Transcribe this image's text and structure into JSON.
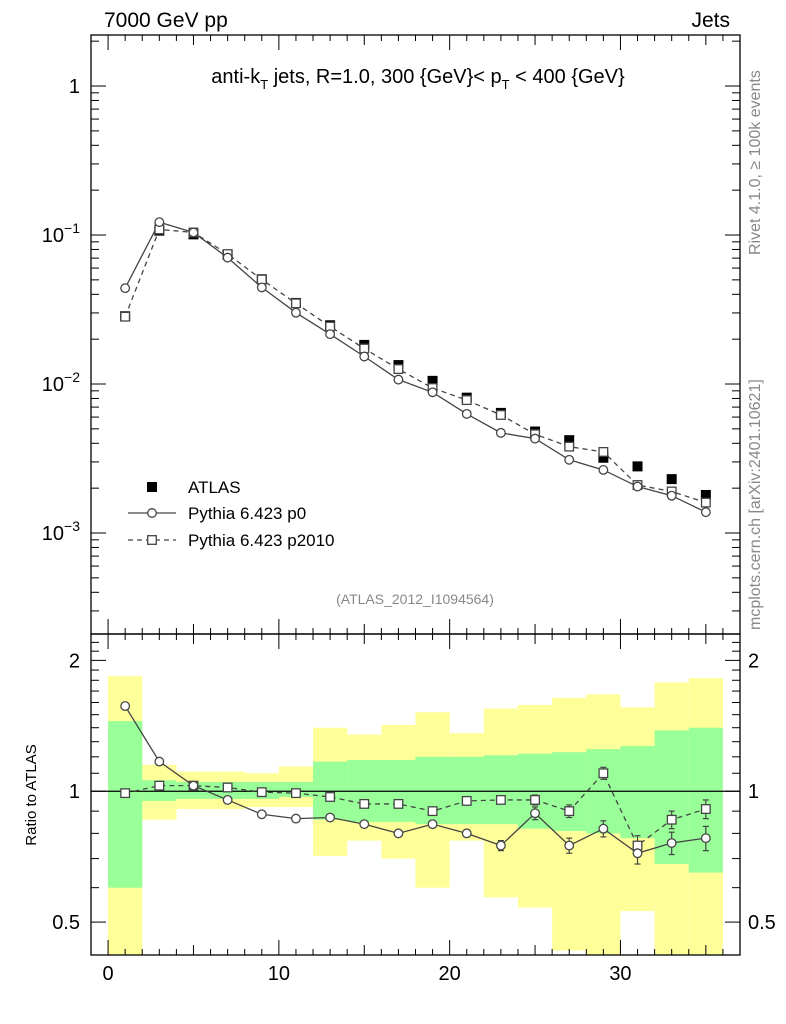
{
  "header": {
    "left": "7000 GeV pp",
    "right": "Jets"
  },
  "title_parts": {
    "pre": "anti-k",
    "sub1": "T",
    "mid": " jets, R=1.0, 300 {GeV}< p",
    "sub2": "T",
    "post": " < 400 {GeV}"
  },
  "side_labels": {
    "rivet": "Rivet 4.1.0, ≥ 100k events",
    "mcplots": "mcplots.cern.ch [arXiv:2401.10621]"
  },
  "analysis_id": "(ATLAS_2012_I1094564)",
  "ratio_ylabel": "Ratio to ATLAS",
  "legend": [
    {
      "label": "ATLAS",
      "style": "data"
    },
    {
      "label": "Pythia 6.423 p0",
      "style": "circle-solid"
    },
    {
      "label": "Pythia 6.423 p2010",
      "style": "square-dashed"
    }
  ],
  "colors": {
    "band_inner": "#99ff99",
    "band_outer": "#ffff99",
    "mc": "#444444",
    "data": "#000000"
  },
  "main_yticks": [
    {
      "base": "1",
      "exp": ""
    },
    {
      "base": "10",
      "exp": "−1"
    },
    {
      "base": "10",
      "exp": "−2"
    },
    {
      "base": "10",
      "exp": "−3"
    }
  ],
  "ratio_yticks": [
    "2",
    "1",
    "0.5"
  ],
  "xticks": [
    "0",
    "10",
    "20",
    "30"
  ],
  "chart_data": {
    "type": "scatter",
    "title": "anti-kT jets, R=1.0, 300 {GeV}< pT < 400 {GeV}",
    "xlim": [
      -1,
      37
    ],
    "main_ylim": [
      0.00021,
      2.2
    ],
    "main_yscale": "log",
    "ratio_ylim": [
      0.42,
      2.3
    ],
    "ratio_yscale": "log",
    "x": [
      1,
      3,
      5,
      7,
      9,
      11,
      13,
      15,
      17,
      19,
      21,
      23,
      25,
      27,
      29,
      31,
      33,
      35
    ],
    "bin_edges": [
      0,
      2,
      4,
      6,
      8,
      10,
      12,
      14,
      16,
      18,
      20,
      22,
      24,
      26,
      28,
      30,
      32,
      34,
      36
    ],
    "series": [
      {
        "name": "ATLAS",
        "values": [
          0.0285,
          0.107,
          0.101,
          0.0735,
          0.0505,
          0.035,
          0.0248,
          0.0183,
          0.0134,
          0.0105,
          0.0081,
          0.0064,
          0.0048,
          0.0042,
          0.0032,
          0.0028,
          0.0023,
          0.0018
        ]
      },
      {
        "name": "Pythia 6.423 p0",
        "values": [
          0.044,
          0.122,
          0.104,
          0.0705,
          0.0445,
          0.0301,
          0.0216,
          0.0153,
          0.0107,
          0.0088,
          0.0063,
          0.0047,
          0.0043,
          0.0031,
          0.00265,
          0.00205,
          0.00178,
          0.00138
        ]
      },
      {
        "name": "Pythia 6.423 p2010",
        "values": [
          0.0283,
          0.109,
          0.104,
          0.0745,
          0.0503,
          0.0348,
          0.0243,
          0.0173,
          0.0126,
          0.0094,
          0.0078,
          0.0062,
          0.0046,
          0.0038,
          0.0035,
          0.0021,
          0.0019,
          0.0016
        ]
      }
    ],
    "ratio": [
      {
        "name": "Pythia 6.423 p0",
        "values": [
          1.57,
          1.17,
          1.03,
          0.955,
          0.885,
          0.865,
          0.87,
          0.84,
          0.8,
          0.84,
          0.8,
          0.75,
          0.89,
          0.75,
          0.82,
          0.72,
          0.76,
          0.78
        ],
        "errors": [
          0,
          0,
          0,
          0,
          0,
          0,
          0,
          0,
          0.01,
          0.015,
          0.015,
          0.02,
          0.03,
          0.03,
          0.035,
          0.04,
          0.045,
          0.05
        ]
      },
      {
        "name": "Pythia 6.423 p2010",
        "values": [
          0.99,
          1.03,
          1.03,
          1.02,
          0.995,
          0.99,
          0.97,
          0.935,
          0.935,
          0.9,
          0.95,
          0.955,
          0.955,
          0.9,
          1.1,
          0.75,
          0.86,
          0.91
        ],
        "errors": [
          0,
          0,
          0,
          0,
          0,
          0,
          0,
          0.01,
          0.012,
          0.015,
          0.015,
          0.02,
          0.025,
          0.03,
          0.035,
          0.04,
          0.04,
          0.045
        ]
      }
    ],
    "bands": {
      "inner": [
        [
          0.6,
          1.45
        ],
        [
          0.95,
          1.06
        ],
        [
          0.96,
          1.05
        ],
        [
          0.96,
          1.05
        ],
        [
          0.96,
          1.05
        ],
        [
          0.97,
          1.05
        ],
        [
          0.86,
          1.17
        ],
        [
          0.85,
          1.18
        ],
        [
          0.85,
          1.18
        ],
        [
          0.84,
          1.2
        ],
        [
          0.84,
          1.2
        ],
        [
          0.84,
          1.21
        ],
        [
          0.82,
          1.22
        ],
        [
          0.81,
          1.23
        ],
        [
          0.8,
          1.25
        ],
        [
          0.78,
          1.27
        ],
        [
          0.68,
          1.38
        ],
        [
          0.65,
          1.4
        ]
      ],
      "outer": [
        [
          0.3,
          1.84
        ],
        [
          0.86,
          1.15
        ],
        [
          0.91,
          1.11
        ],
        [
          0.91,
          1.11
        ],
        [
          0.92,
          1.1
        ],
        [
          0.92,
          1.14
        ],
        [
          0.71,
          1.4
        ],
        [
          0.77,
          1.35
        ],
        [
          0.7,
          1.42
        ],
        [
          0.6,
          1.52
        ],
        [
          0.77,
          1.36
        ],
        [
          0.57,
          1.55
        ],
        [
          0.54,
          1.58
        ],
        [
          0.43,
          1.64
        ],
        [
          0.37,
          1.67
        ],
        [
          0.53,
          1.56
        ],
        [
          0.3,
          1.78
        ],
        [
          0.3,
          1.82
        ]
      ]
    }
  }
}
